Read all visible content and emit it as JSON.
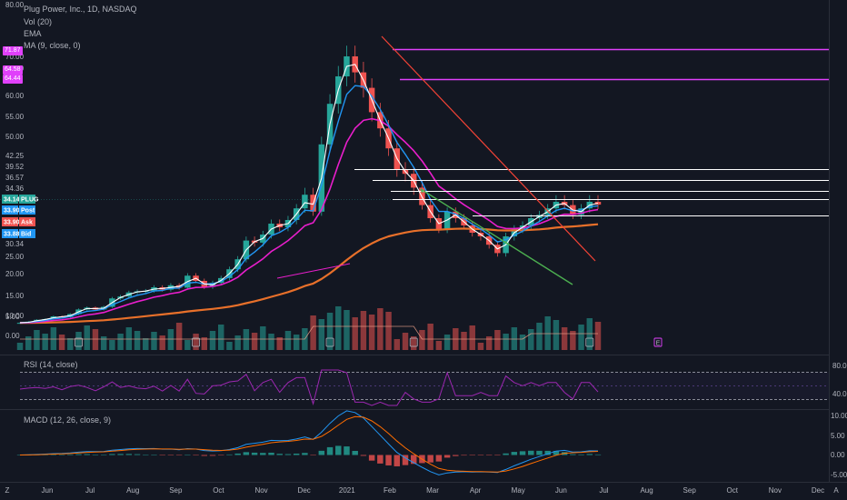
{
  "header": {
    "symbol_title": "Plug Power, Inc., 1D, NASDAQ",
    "volume_label": "Vol (20)",
    "ema_label": "EMA",
    "ma_label": "MA (9, close, 0)",
    "rsi_label": "RSI (14, close)",
    "macd_label": "MACD (12, 26, close, 9)"
  },
  "left_tags": [
    {
      "text": "71.87",
      "color": "#e040fb"
    },
    {
      "text": "64.58",
      "color": "#e040fb"
    },
    {
      "text": "64.44",
      "color": "#e040fb"
    }
  ],
  "price_axis": [
    "80.00",
    "70.00",
    "65.00",
    "60.00",
    "55.00",
    "50.00",
    "42.25",
    "39.52",
    "36.57",
    "34.36",
    "30.34",
    "25.00",
    "20.00",
    "15.00",
    "10.00",
    "5.00",
    "0.00"
  ],
  "price_tags": [
    {
      "value": "34.14",
      "label": "PLUG",
      "color": "#26a69a"
    },
    {
      "value": "33.90",
      "label": "Post",
      "color": "#2196f3"
    },
    {
      "value": "33.90",
      "label": "Ask",
      "color": "#ef5350"
    },
    {
      "value": "33.88",
      "label": "Bid",
      "color": "#2196f3"
    }
  ],
  "rsi_axis": [
    "80.00",
    "40.00"
  ],
  "macd_axis": [
    "10.00",
    "5.00",
    "0.00",
    "-5.00"
  ],
  "time_axis": [
    "Jun",
    "Jul",
    "Aug",
    "Sep",
    "Oct",
    "Nov",
    "Dec",
    "2021",
    "Feb",
    "Mar",
    "Apr",
    "May",
    "Jun",
    "Jul",
    "Aug",
    "Sep",
    "Oct",
    "Nov",
    "Dec"
  ],
  "earnings_marker": "E",
  "corner_left": "Z",
  "corner_right": "A",
  "colors": {
    "background": "#131722",
    "up": "#26a69a",
    "down": "#ef5350",
    "ema_fast": "#2196f3",
    "ma9": "#ffffff",
    "ema_mid": "#e91ecc",
    "ema_slow": "#e8702a",
    "resistance": "#e040fb",
    "rsi": "#9c27b0",
    "macd": "#2196f3",
    "signal": "#ff6d00"
  },
  "chart_data": {
    "type": "line",
    "title": "Plug Power, Inc., 1D, NASDAQ",
    "y_ticks": [
      80,
      70,
      65,
      60,
      55,
      50,
      42.25,
      39.52,
      36.57,
      34.36,
      30.34,
      25,
      20,
      15,
      10,
      5,
      0
    ],
    "resistance_levels": [
      71.87,
      64.44
    ],
    "horizontal_levels": [
      39.52,
      36.57,
      34.36,
      30.34
    ],
    "last_price": 34.14,
    "series": [
      {
        "name": "close",
        "points": [
          [
            0,
            3.3
          ],
          [
            1,
            3.6
          ],
          [
            2,
            4.1
          ],
          [
            3,
            4.3
          ],
          [
            4,
            5.0
          ],
          [
            5,
            4.8
          ],
          [
            6,
            5.6
          ],
          [
            7,
            6.8
          ],
          [
            8,
            7.3
          ],
          [
            9,
            6.8
          ],
          [
            10,
            7.5
          ],
          [
            11,
            9.7
          ],
          [
            12,
            10.2
          ],
          [
            13,
            11.2
          ],
          [
            14,
            11.5
          ],
          [
            15,
            11.6
          ],
          [
            16,
            12.5
          ],
          [
            17,
            11.9
          ],
          [
            18,
            13.0
          ],
          [
            19,
            12.4
          ],
          [
            20,
            15.4
          ],
          [
            21,
            14.1
          ],
          [
            22,
            12.6
          ],
          [
            23,
            13.6
          ],
          [
            24,
            14.8
          ],
          [
            25,
            17.0
          ],
          [
            26,
            19.5
          ],
          [
            27,
            24.0
          ],
          [
            28,
            23.5
          ],
          [
            29,
            25.5
          ],
          [
            30,
            28.5
          ],
          [
            31,
            27.5
          ],
          [
            32,
            29.5
          ],
          [
            33,
            33.0
          ],
          [
            34,
            36.5
          ],
          [
            35,
            32.0
          ],
          [
            36,
            48.0
          ],
          [
            37,
            58.0
          ],
          [
            38,
            65.0
          ],
          [
            39,
            70.0
          ],
          [
            40,
            66.0
          ],
          [
            41,
            62.0
          ],
          [
            42,
            56.0
          ],
          [
            43,
            52.0
          ],
          [
            44,
            47.0
          ],
          [
            45,
            42.0
          ],
          [
            46,
            41.0
          ],
          [
            47,
            38.0
          ],
          [
            48,
            34.0
          ],
          [
            49,
            30.0
          ],
          [
            50,
            27.0
          ],
          [
            51,
            32.0
          ],
          [
            52,
            30.0
          ],
          [
            53,
            28.0
          ],
          [
            54,
            26.0
          ],
          [
            55,
            25.0
          ],
          [
            56,
            23.0
          ],
          [
            57,
            21.0
          ],
          [
            58,
            25.0
          ],
          [
            59,
            27.0
          ],
          [
            60,
            28.0
          ],
          [
            61,
            30.0
          ],
          [
            62,
            31.0
          ],
          [
            63,
            33.0
          ],
          [
            64,
            35.0
          ],
          [
            65,
            34.0
          ],
          [
            66,
            31.0
          ],
          [
            67,
            33.0
          ],
          [
            68,
            35.0
          ],
          [
            69,
            34.14
          ]
        ]
      }
    ]
  }
}
